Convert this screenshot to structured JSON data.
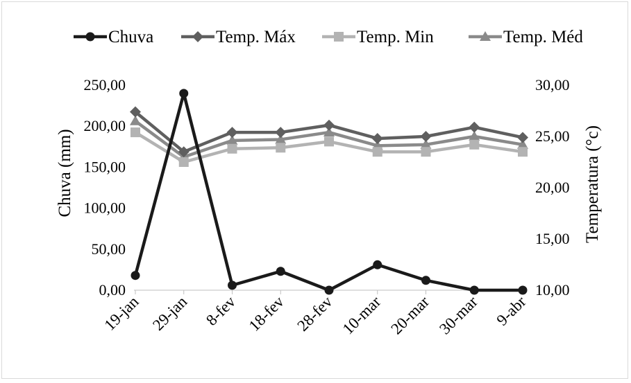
{
  "chart_data": {
    "type": "line",
    "categories": [
      "19-jan",
      "29-jan",
      "8-fev",
      "18-fev",
      "28-fev",
      "10-mar",
      "20-mar",
      "30-mar",
      "9-abr"
    ],
    "y_left": {
      "label": "Chuva (mm)",
      "range": [
        0,
        250
      ],
      "ticks": [
        0,
        50,
        100,
        150,
        200,
        250
      ],
      "tick_labels": [
        "0,00",
        "50,00",
        "100,00",
        "150,00",
        "200,00",
        "250,00"
      ]
    },
    "y_right": {
      "label": "Temperatura (°c)",
      "range": [
        10,
        30
      ],
      "ticks": [
        10,
        15,
        20,
        25,
        30
      ],
      "tick_labels": [
        "10,00",
        "15,00",
        "20,00",
        "25,00",
        "30,00"
      ]
    },
    "grid": false,
    "legend_position": "top",
    "series": [
      {
        "name": "Chuva",
        "axis": "left",
        "marker": "circle",
        "color": "#1a1a1a",
        "values": [
          18,
          240,
          6,
          23,
          0,
          31,
          12,
          0,
          0
        ]
      },
      {
        "name": "Temp. Máx",
        "axis": "right",
        "marker": "diamond",
        "color": "#5f5f5f",
        "values": [
          27.4,
          23.5,
          25.4,
          25.4,
          26.1,
          24.8,
          25.0,
          25.9,
          24.9
        ]
      },
      {
        "name": "Temp. Min",
        "axis": "right",
        "marker": "square",
        "color": "#b3b3b3",
        "values": [
          25.4,
          22.5,
          23.8,
          23.9,
          24.5,
          23.5,
          23.5,
          24.2,
          23.5
        ]
      },
      {
        "name": "Temp. Méd",
        "axis": "right",
        "marker": "triangle",
        "color": "#8a8a8a",
        "values": [
          26.5,
          23.0,
          24.6,
          24.7,
          25.4,
          24.1,
          24.2,
          25.0,
          24.2
        ]
      }
    ]
  }
}
